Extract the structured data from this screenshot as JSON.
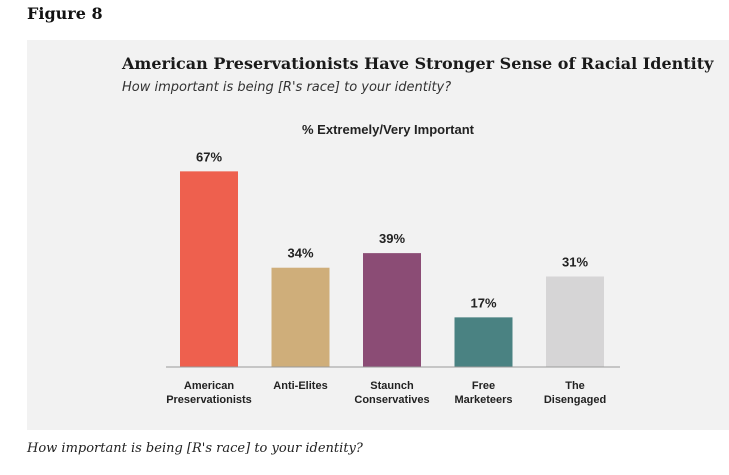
{
  "figure_label": "Figure 8",
  "caption": "How important is being [R's race] to your identity?",
  "chart_data": {
    "type": "bar",
    "title": "American Preservationists Have Stronger Sense of Racial Identity",
    "subtitle": "How important is being [R's race] to your identity?",
    "series_label": "% Extremely/Very Important",
    "categories": [
      [
        "American",
        "Preservationists"
      ],
      [
        "Anti-Elites"
      ],
      [
        "Staunch",
        "Conservatives"
      ],
      [
        "Free",
        "Marketeers"
      ],
      [
        "The",
        "Disengaged"
      ]
    ],
    "values": [
      67,
      34,
      39,
      17,
      31
    ],
    "value_labels": [
      "67%",
      "34%",
      "39%",
      "17%",
      "31%"
    ],
    "colors": [
      "#ee604e",
      "#cfae7a",
      "#8b4c75",
      "#4a8282",
      "#d6d5d6"
    ],
    "ylim": [
      0,
      100
    ],
    "grid": false,
    "legend": "none"
  }
}
